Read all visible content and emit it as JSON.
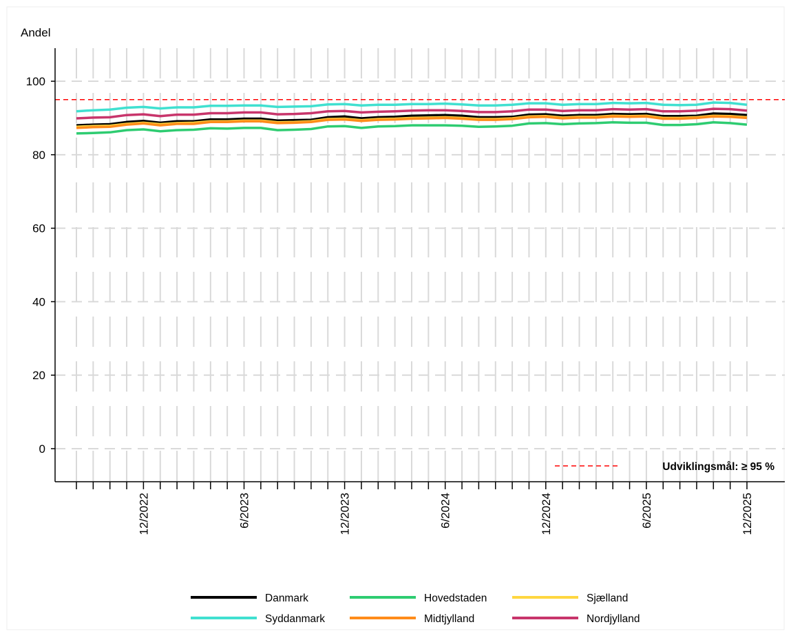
{
  "chart_data": {
    "type": "line",
    "ylabel": "Andel",
    "ylim": [
      -9,
      109
    ],
    "yticks": [
      0,
      20,
      40,
      60,
      80,
      100
    ],
    "x": [
      "8/2022",
      "9/2022",
      "10/2022",
      "11/2022",
      "12/2022",
      "1/2023",
      "2/2023",
      "3/2023",
      "4/2023",
      "5/2023",
      "6/2023",
      "7/2023",
      "8/2023",
      "9/2023",
      "10/2023",
      "11/2023",
      "12/2023",
      "1/2024",
      "2/2024",
      "3/2024",
      "4/2024",
      "5/2024",
      "6/2024",
      "7/2024",
      "8/2024",
      "9/2024",
      "10/2024",
      "11/2024",
      "12/2024",
      "1/2025",
      "2/2025",
      "3/2025",
      "4/2025",
      "5/2025",
      "6/2025",
      "7/2025",
      "8/2025",
      "9/2025",
      "10/2025",
      "11/2025",
      "12/2025"
    ],
    "x_tick_labels": [
      "12/2022",
      "6/2023",
      "12/2023",
      "6/2024",
      "12/2024",
      "6/2025",
      "12/2025"
    ],
    "grid": true,
    "reference_line": {
      "value": 95,
      "color": "#ff0000",
      "style": "dashed",
      "label": "Udviklingsmål: ≥ 95 %"
    },
    "legend_position": "bottom",
    "series": [
      {
        "name": "Danmark",
        "color": "#000000",
        "values": [
          88.0,
          88.2,
          88.3,
          88.9,
          89.2,
          88.7,
          89.1,
          89.1,
          89.6,
          89.6,
          89.8,
          89.8,
          89.3,
          89.4,
          89.5,
          90.2,
          90.4,
          89.9,
          90.2,
          90.3,
          90.6,
          90.7,
          90.8,
          90.6,
          90.2,
          90.2,
          90.3,
          90.9,
          91.0,
          90.6,
          90.8,
          90.8,
          91.1,
          91.0,
          91.1,
          90.5,
          90.5,
          90.6,
          91.2,
          91.1,
          90.8
        ]
      },
      {
        "name": "Hovedstaden",
        "color": "#2ecc71",
        "values": [
          85.8,
          85.9,
          86.1,
          86.7,
          86.9,
          86.4,
          86.7,
          86.8,
          87.2,
          87.1,
          87.3,
          87.3,
          86.7,
          86.8,
          87.0,
          87.7,
          87.8,
          87.3,
          87.7,
          87.8,
          88.0,
          88.0,
          88.0,
          87.9,
          87.6,
          87.7,
          87.9,
          88.5,
          88.6,
          88.3,
          88.5,
          88.6,
          88.8,
          88.7,
          88.7,
          88.1,
          88.1,
          88.3,
          88.8,
          88.6,
          88.2
        ]
      },
      {
        "name": "Sjælland",
        "color": "#ffd740",
        "values": [
          87.6,
          87.8,
          87.9,
          88.4,
          88.7,
          88.3,
          88.6,
          88.7,
          89.1,
          89.1,
          89.3,
          89.3,
          88.8,
          88.9,
          89.1,
          89.7,
          89.8,
          89.4,
          89.7,
          89.8,
          90.0,
          90.1,
          90.2,
          90.0,
          89.7,
          89.7,
          89.9,
          90.4,
          90.5,
          90.1,
          90.3,
          90.3,
          90.6,
          90.5,
          90.6,
          90.0,
          90.0,
          90.2,
          90.6,
          90.5,
          90.2
        ]
      },
      {
        "name": "Syddanmark",
        "color": "#40e0d0",
        "values": [
          91.8,
          92.1,
          92.3,
          92.8,
          93.0,
          92.6,
          92.9,
          92.9,
          93.3,
          93.3,
          93.4,
          93.4,
          93.0,
          93.1,
          93.2,
          93.7,
          93.8,
          93.4,
          93.6,
          93.6,
          93.8,
          93.8,
          93.9,
          93.7,
          93.4,
          93.4,
          93.6,
          94.0,
          94.0,
          93.6,
          93.8,
          93.8,
          94.1,
          94.0,
          94.1,
          93.6,
          93.5,
          93.6,
          94.2,
          94.1,
          93.6
        ]
      },
      {
        "name": "Midtjylland",
        "color": "#ff8c1a",
        "values": [
          87.3,
          87.5,
          87.6,
          88.2,
          88.5,
          88.0,
          88.4,
          88.4,
          88.9,
          88.9,
          89.1,
          89.1,
          88.6,
          88.7,
          88.9,
          89.5,
          89.6,
          89.2,
          89.5,
          89.6,
          89.8,
          89.9,
          90.0,
          89.8,
          89.5,
          89.5,
          89.7,
          90.2,
          90.3,
          89.9,
          90.1,
          90.1,
          90.4,
          90.3,
          90.4,
          89.8,
          89.8,
          90.0,
          90.4,
          90.3,
          90.0
        ]
      },
      {
        "name": "Nordjylland",
        "color": "#c8356b",
        "values": [
          89.9,
          90.1,
          90.2,
          90.8,
          91.0,
          90.5,
          90.9,
          90.9,
          91.3,
          91.3,
          91.5,
          91.5,
          91.0,
          91.1,
          91.3,
          91.8,
          91.9,
          91.5,
          91.7,
          91.8,
          92.0,
          92.1,
          92.1,
          91.9,
          91.6,
          91.6,
          91.8,
          92.3,
          92.3,
          91.9,
          92.1,
          92.1,
          92.4,
          92.3,
          92.4,
          91.8,
          91.8,
          92.0,
          92.5,
          92.4,
          92.0
        ]
      }
    ]
  }
}
